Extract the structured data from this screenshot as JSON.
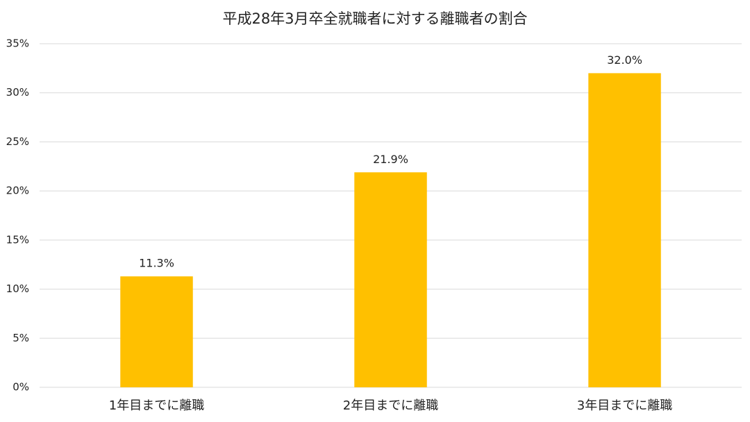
{
  "chart_data": {
    "type": "bar",
    "title": "平成28年3月卒全就職者に対する離職者の割合",
    "categories": [
      "1年目までに離職",
      "2年目までに離職",
      "3年目までに離職"
    ],
    "values": [
      11.3,
      21.9,
      32.0
    ],
    "value_labels": [
      "11.3%",
      "21.9%",
      "32.0%"
    ],
    "color": "#ffc000",
    "ylim": [
      0,
      35
    ],
    "yticks": [
      {
        "value": 0,
        "label": "0%"
      },
      {
        "value": 5,
        "label": "5%"
      },
      {
        "value": 10,
        "label": "10%"
      },
      {
        "value": 15,
        "label": "15%"
      },
      {
        "value": 20,
        "label": "20%"
      },
      {
        "value": 25,
        "label": "25%"
      },
      {
        "value": 30,
        "label": "30%"
      },
      {
        "value": 35,
        "label": "35%"
      }
    ],
    "grid": true
  }
}
